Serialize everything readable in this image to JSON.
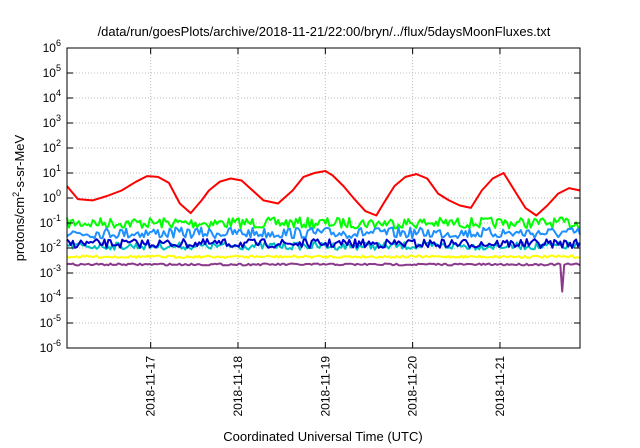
{
  "chart_data": {
    "type": "line",
    "title": "/data/run/goesPlots/archive/2018-11-21/22:00/bryn/../flux/5daysMoonFluxes.txt",
    "xlabel": "Coordinated Universal Time (UTC)",
    "ylabel": {
      "prefix": "protons/cm",
      "sup": "2",
      "suffix": "-s-sr-MeV"
    },
    "x_range_days": [
      "2018-11-16T01:00",
      "2018-11-21T22:00"
    ],
    "x_ticks": [
      {
        "label": "2018-11-17",
        "day": 1.0
      },
      {
        "label": "2018-11-18",
        "day": 2.0
      },
      {
        "label": "2018-11-19",
        "day": 3.0
      },
      {
        "label": "2018-11-20",
        "day": 4.0
      },
      {
        "label": "2018-11-21",
        "day": 5.0
      }
    ],
    "y_scale": "log",
    "y_ticks": [
      {
        "base": "10",
        "exp": "-6",
        "value": -6
      },
      {
        "base": "10",
        "exp": "-5",
        "value": -5
      },
      {
        "base": "10",
        "exp": "-4",
        "value": -4
      },
      {
        "base": "10",
        "exp": "-3",
        "value": -3
      },
      {
        "base": "10",
        "exp": "-2",
        "value": -2
      },
      {
        "base": "10",
        "exp": "-1",
        "value": -1
      },
      {
        "base": "10",
        "exp": "0",
        "value": 0
      },
      {
        "base": "10",
        "exp": "1",
        "value": 1
      },
      {
        "base": "10",
        "exp": "2",
        "value": 2
      },
      {
        "base": "10",
        "exp": "3",
        "value": 3
      },
      {
        "base": "10",
        "exp": "4",
        "value": 4
      },
      {
        "base": "10",
        "exp": "5",
        "value": 5
      },
      {
        "base": "10",
        "exp": "6",
        "value": 6
      }
    ],
    "grid": true,
    "legend": "none",
    "series": [
      {
        "color": "#ff0000",
        "x": [
          "2018-11-16T01:00",
          "2018-11-16T04:00",
          "2018-11-16T08:00",
          "2018-11-16T12:00",
          "2018-11-16T16:00",
          "2018-11-16T20:00",
          "2018-11-16T23:00",
          "2018-11-17T02:00",
          "2018-11-17T05:00",
          "2018-11-17T08:00",
          "2018-11-17T11:00",
          "2018-11-17T14:00",
          "2018-11-17T16:00",
          "2018-11-17T19:00",
          "2018-11-17T22:00",
          "2018-11-18T01:00",
          "2018-11-18T04:00",
          "2018-11-18T07:00",
          "2018-11-18T11:00",
          "2018-11-18T15:00",
          "2018-11-18T18:00",
          "2018-11-18T21:00",
          "2018-11-19T00:00",
          "2018-11-19T02:00",
          "2018-11-19T05:00",
          "2018-11-19T08:00",
          "2018-11-19T11:00",
          "2018-11-19T14:00",
          "2018-11-19T16:00",
          "2018-11-19T19:00",
          "2018-11-19T22:00",
          "2018-11-20T01:00",
          "2018-11-20T04:00",
          "2018-11-20T07:00",
          "2018-11-20T10:00",
          "2018-11-20T13:00",
          "2018-11-20T16:00",
          "2018-11-20T19:00",
          "2018-11-20T22:00",
          "2018-11-21T01:00",
          "2018-11-21T04:00",
          "2018-11-21T07:00",
          "2018-11-21T10:00",
          "2018-11-21T13:00",
          "2018-11-21T16:00",
          "2018-11-21T19:00",
          "2018-11-21T22:00"
        ],
        "y": [
          3.0,
          0.9,
          0.8,
          1.2,
          2.0,
          4.5,
          7.5,
          7.0,
          4.0,
          0.6,
          0.25,
          0.8,
          2.0,
          4.5,
          6.0,
          5.0,
          2.0,
          0.8,
          0.6,
          2.0,
          7.0,
          10.0,
          12.0,
          8.0,
          3.0,
          0.9,
          0.3,
          0.2,
          0.6,
          3.0,
          7.0,
          9.0,
          6.0,
          1.5,
          0.8,
          0.5,
          0.4,
          2.0,
          6.0,
          10.0,
          2.0,
          0.4,
          0.2,
          0.5,
          1.5,
          2.5,
          2.0
        ]
      },
      {
        "color": "#00ff00",
        "x": [
          "2018-11-16T01:00",
          "2018-11-17T00:00",
          "2018-11-18T00:00",
          "2018-11-19T00:00",
          "2018-11-20T00:00",
          "2018-11-21T00:00",
          "2018-11-21T22:00"
        ],
        "y": [
          0.1,
          0.1,
          0.1,
          0.1,
          0.1,
          0.1,
          0.1
        ],
        "noise": 0.22
      },
      {
        "color": "#1e90ff",
        "x": [
          "2018-11-16T01:00",
          "2018-11-17T00:00",
          "2018-11-18T00:00",
          "2018-11-19T00:00",
          "2018-11-20T00:00",
          "2018-11-21T00:00",
          "2018-11-21T22:00"
        ],
        "y": [
          0.04,
          0.04,
          0.04,
          0.04,
          0.04,
          0.04,
          0.04
        ],
        "noise": 0.22
      },
      {
        "color": "#00c0c0",
        "x": [
          "2018-11-16T01:00",
          "2018-11-17T00:00",
          "2018-11-18T00:00",
          "2018-11-19T00:00",
          "2018-11-20T00:00",
          "2018-11-21T00:00",
          "2018-11-21T22:00"
        ],
        "y": [
          0.012,
          0.012,
          0.012,
          0.012,
          0.012,
          0.012,
          0.012
        ],
        "noise": 0.15
      },
      {
        "color": "#0000cd",
        "x": [
          "2018-11-16T01:00",
          "2018-11-17T00:00",
          "2018-11-18T00:00",
          "2018-11-19T00:00",
          "2018-11-20T00:00",
          "2018-11-21T00:00",
          "2018-11-21T22:00"
        ],
        "y": [
          0.015,
          0.015,
          0.015,
          0.015,
          0.015,
          0.015,
          0.015
        ],
        "noise": 0.18
      },
      {
        "color": "#ffff00",
        "x": [
          "2018-11-16T01:00",
          "2018-11-17T00:00",
          "2018-11-18T00:00",
          "2018-11-19T00:00",
          "2018-11-20T00:00",
          "2018-11-21T00:00",
          "2018-11-21T22:00"
        ],
        "y": [
          0.0045,
          0.0045,
          0.0045,
          0.0045,
          0.0045,
          0.0045,
          0.0045
        ],
        "noise": 0.05
      },
      {
        "color": "#8b3a8b",
        "x": [
          "2018-11-16T01:00",
          "2018-11-17T00:00",
          "2018-11-18T00:00",
          "2018-11-19T00:00",
          "2018-11-20T00:00",
          "2018-11-21T00:00",
          "2018-11-21T22:00"
        ],
        "y": [
          0.0022,
          0.0022,
          0.0022,
          0.0022,
          0.0022,
          0.0022,
          0.0022
        ],
        "noise": 0.04,
        "dips": [
          {
            "x": "2018-11-21T17:00",
            "y": 0.00018
          }
        ]
      }
    ]
  }
}
